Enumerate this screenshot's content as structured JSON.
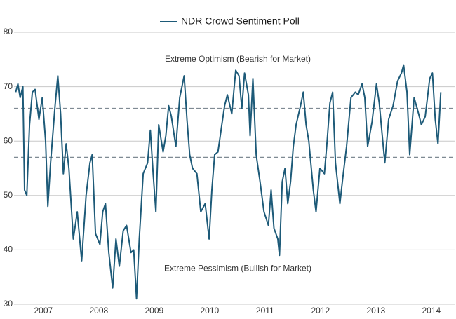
{
  "chart_data": {
    "type": "line",
    "series": [
      {
        "name": "NDR Crowd Sentiment Poll",
        "color": "#1d5a78",
        "x": [
          2007.0,
          2007.04,
          2007.08,
          2007.13,
          2007.16,
          2007.2,
          2007.25,
          2007.3,
          2007.35,
          2007.42,
          2007.48,
          2007.54,
          2007.58,
          2007.63,
          2007.71,
          2007.76,
          2007.81,
          2007.86,
          2007.91,
          2007.96,
          2008.04,
          2008.11,
          2008.19,
          2008.27,
          2008.34,
          2008.38,
          2008.44,
          2008.52,
          2008.57,
          2008.62,
          2008.68,
          2008.75,
          2008.81,
          2008.87,
          2008.94,
          2009.0,
          2009.08,
          2009.13,
          2009.18,
          2009.23,
          2009.3,
          2009.38,
          2009.43,
          2009.48,
          2009.53,
          2009.58,
          2009.66,
          2009.71,
          2009.76,
          2009.81,
          2009.89,
          2009.96,
          2010.04,
          2010.09,
          2010.14,
          2010.19,
          2010.27,
          2010.34,
          2010.42,
          2010.49,
          2010.54,
          2010.59,
          2010.65,
          2010.72,
          2010.77,
          2010.82,
          2010.9,
          2010.97,
          2011.03,
          2011.08,
          2011.13,
          2011.2,
          2011.23,
          2011.28,
          2011.34,
          2011.41,
          2011.48,
          2011.56,
          2011.61,
          2011.66,
          2011.73,
          2011.76,
          2011.81,
          2011.86,
          2011.91,
          2011.96,
          2012.01,
          2012.06,
          2012.14,
          2012.19,
          2012.24,
          2012.29,
          2012.37,
          2012.42,
          2012.49,
          2012.57,
          2012.62,
          2012.67,
          2012.72,
          2012.77,
          2012.85,
          2012.9,
          2012.97,
          2013.05,
          2013.13,
          2013.18,
          2013.25,
          2013.3,
          2013.35,
          2013.43,
          2013.51,
          2013.56,
          2013.61,
          2013.66,
          2013.73,
          2013.81,
          2013.89,
          2013.96,
          2014.0,
          2014.06,
          2014.11,
          2014.19,
          2014.27,
          2014.32,
          2014.39,
          2014.47,
          2014.52,
          2014.57,
          2014.62,
          2014.67
        ],
        "values": [
          69,
          70.5,
          68,
          70,
          51,
          50,
          63,
          69,
          69.5,
          64,
          68,
          60,
          48,
          56,
          66.5,
          72,
          65,
          54,
          59.5,
          55,
          42,
          47,
          38,
          50,
          56,
          57.5,
          43,
          41,
          47,
          48.5,
          39.5,
          33,
          42,
          37,
          43.5,
          44.5,
          39.5,
          40,
          31,
          42,
          54,
          56,
          62,
          54,
          47,
          63,
          58,
          61,
          66.5,
          64.5,
          59,
          68,
          72,
          64,
          57.5,
          55,
          54,
          47,
          48.5,
          42,
          51,
          57.5,
          58,
          63,
          66.5,
          68.5,
          65,
          73,
          72,
          66,
          72.5,
          68.5,
          61,
          71.5,
          57.5,
          52.5,
          47,
          44.5,
          51,
          44,
          42,
          39,
          52.5,
          55,
          48.5,
          52.5,
          59,
          63,
          66.5,
          69,
          63,
          60,
          51,
          47,
          55,
          54,
          60,
          67,
          69,
          56,
          48.5,
          53,
          59,
          68,
          69,
          68.5,
          70.5,
          68,
          59,
          63.5,
          70.5,
          67,
          61.5,
          56,
          64,
          66.5,
          71,
          72.5,
          74,
          69,
          57.5,
          68,
          65,
          63,
          64.5,
          71.5,
          72.5,
          64,
          59.5,
          69
        ]
      }
    ],
    "xlim": [
      2006.97,
      2014.92
    ],
    "xticks": [
      {
        "value": 2007.5,
        "label": "2007"
      },
      {
        "value": 2008.5,
        "label": "2008"
      },
      {
        "value": 2009.5,
        "label": "2009"
      },
      {
        "value": 2010.5,
        "label": "2010"
      },
      {
        "value": 2011.5,
        "label": "2011"
      },
      {
        "value": 2012.5,
        "label": "2012"
      },
      {
        "value": 2013.5,
        "label": "2013"
      },
      {
        "value": 2014.5,
        "label": "2014"
      }
    ],
    "ylim": [
      30,
      80
    ],
    "yticks": [
      30,
      40,
      50,
      60,
      70,
      80
    ],
    "grid": true,
    "hlines": [
      66,
      57
    ],
    "annotations": [
      {
        "text": "Extreme Optimism (Bearish for Market)",
        "y": 75
      },
      {
        "text": "Extreme Pessimism (Bullish for Market)",
        "y": 36.5
      }
    ]
  }
}
